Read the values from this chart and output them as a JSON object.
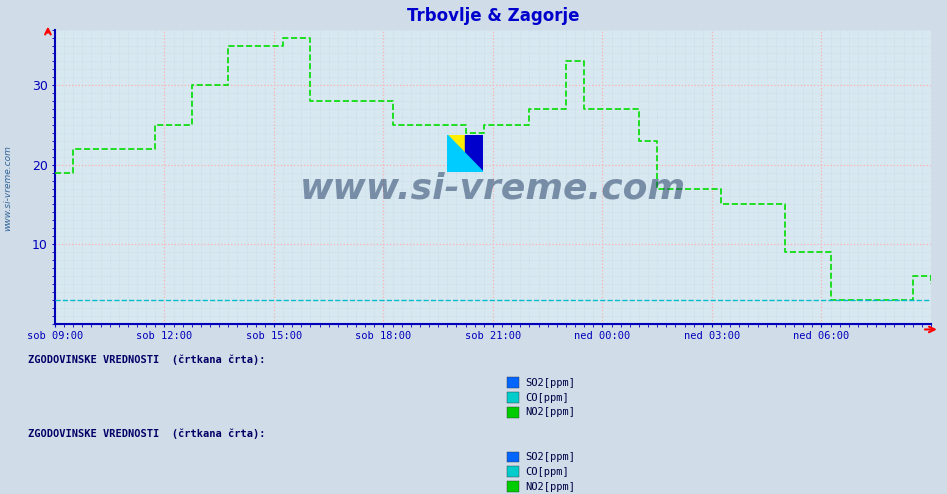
{
  "title": "Trbovlje & Zagorje",
  "title_color": "#0000cc",
  "bg_color": "#d8e8f0",
  "outer_bg_color": "#d0dce8",
  "axis_color": "#0000bb",
  "grid_color_major": "#ffaaaa",
  "grid_color_minor": "#bbccdd",
  "ylabel_color": "#0000aa",
  "xlabel_color": "#0000aa",
  "yticks": [
    10,
    20,
    30
  ],
  "ylim": [
    0,
    37
  ],
  "xtick_labels": [
    "sob 09:00",
    "sob 12:00",
    "sob 15:00",
    "sob 18:00",
    "sob 21:00",
    "ned 00:00",
    "ned 03:00",
    "ned 06:00"
  ],
  "watermark": "www.si-vreme.com",
  "watermark_color": "#1a3560",
  "legend1_title": "ZGODOVINSKE VREDNOSTI  (črtkana črta):",
  "legend2_title": "ZGODOVINSKE VREDNOSTI  (črtkana črta):",
  "legend_items": [
    "SO2[ppm]",
    "CO[ppm]",
    "NO2[ppm]"
  ],
  "legend_colors_1": [
    "#0066ff",
    "#00cccc",
    "#00cc00"
  ],
  "legend_colors_2": [
    "#0066ff",
    "#00cccc",
    "#00cc00"
  ],
  "no2_color": "#00dd00",
  "co_color": "#00bbcc",
  "so2_color": "#0000cc",
  "sidewater_color": "#336699",
  "no2_data_y": [
    19,
    19,
    22,
    22,
    22,
    22,
    22,
    22,
    22,
    22,
    22,
    25,
    25,
    25,
    25,
    30,
    30,
    30,
    30,
    35,
    35,
    35,
    35,
    35,
    35,
    36,
    36,
    36,
    28,
    28,
    28,
    28,
    28,
    28,
    28,
    28,
    28,
    25,
    25,
    25,
    25,
    25,
    25,
    25,
    25,
    24,
    24,
    25,
    25,
    25,
    25,
    25,
    27,
    27,
    27,
    27,
    33,
    33,
    27,
    27,
    27,
    27,
    27,
    27,
    23,
    23,
    17,
    17,
    17,
    17,
    17,
    17,
    17,
    15,
    15,
    15,
    15,
    15,
    15,
    15,
    9,
    9,
    9,
    9,
    9,
    3,
    3,
    3,
    3,
    3,
    3,
    3,
    3,
    3,
    6,
    6,
    5
  ],
  "co_data_y": [
    3,
    3,
    3,
    3,
    3,
    3,
    3,
    3,
    3,
    3,
    3,
    3,
    3,
    3,
    3,
    3,
    3,
    3,
    3,
    3,
    3,
    3,
    3,
    3,
    3,
    3,
    3,
    3,
    3,
    3,
    3,
    3,
    3,
    3,
    3,
    3,
    3,
    3,
    3,
    3,
    3,
    3,
    3,
    3,
    3,
    3,
    3,
    3,
    3,
    3,
    3,
    3,
    3,
    3,
    3,
    3,
    3,
    3,
    3,
    3,
    3,
    3,
    3,
    3,
    3,
    3,
    3,
    3,
    3,
    3,
    3,
    3,
    3,
    3,
    3,
    3,
    3,
    3,
    3,
    3,
    3,
    3,
    3,
    3,
    3,
    3,
    3,
    3,
    3,
    3,
    3,
    3,
    3,
    3,
    3,
    3,
    3
  ]
}
